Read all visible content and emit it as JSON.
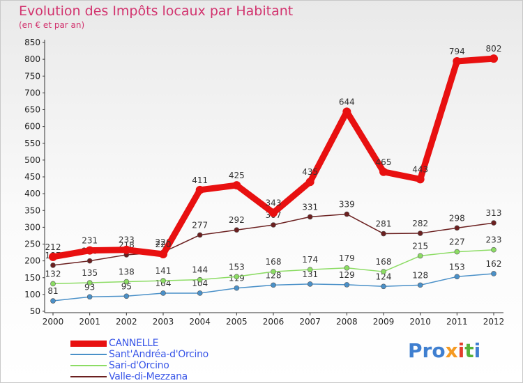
{
  "title": "Evolution des Impôts locaux par Habitant",
  "subtitle": "(en € et par an)",
  "logo": [
    "Pro",
    "x",
    "i",
    "t",
    "i"
  ],
  "chart_data": {
    "type": "line",
    "title": "Evolution des Impôts locaux par Habitant",
    "subtitle": "(en € et par an)",
    "xlabel": "",
    "ylabel": "",
    "x": [
      "2000",
      "2001",
      "2002",
      "2003",
      "2004",
      "2005",
      "2006",
      "2007",
      "2008",
      "2009",
      "2010",
      "2011",
      "2012"
    ],
    "ylim": [
      50,
      850
    ],
    "yticks": [
      50,
      100,
      150,
      200,
      250,
      300,
      350,
      400,
      450,
      500,
      550,
      600,
      650,
      700,
      750,
      800,
      850
    ],
    "grid": false,
    "legend_position": "bottom-left",
    "series": [
      {
        "name": "CANNELLE",
        "color": "#e81010",
        "values": [
          212,
          231,
          233,
          220,
          411,
          425,
          343,
          435,
          644,
          465,
          443,
          794,
          802
        ]
      },
      {
        "name": "Sant'Andréa-d'Orcino",
        "color": "#4a90c8",
        "values": [
          81,
          93,
          95,
          104,
          104,
          119,
          128,
          131,
          129,
          124,
          128,
          153,
          162
        ]
      },
      {
        "name": "Sari-d'Orcino",
        "color": "#8cdc64",
        "values": [
          132,
          135,
          138,
          141,
          144,
          153,
          168,
          174,
          179,
          168,
          215,
          227,
          233
        ]
      },
      {
        "name": "Valle-di-Mezzana",
        "color": "#6b2020",
        "values": [
          187,
          200,
          218,
          226,
          277,
          292,
          307,
          331,
          339,
          281,
          282,
          298,
          313
        ]
      }
    ]
  }
}
